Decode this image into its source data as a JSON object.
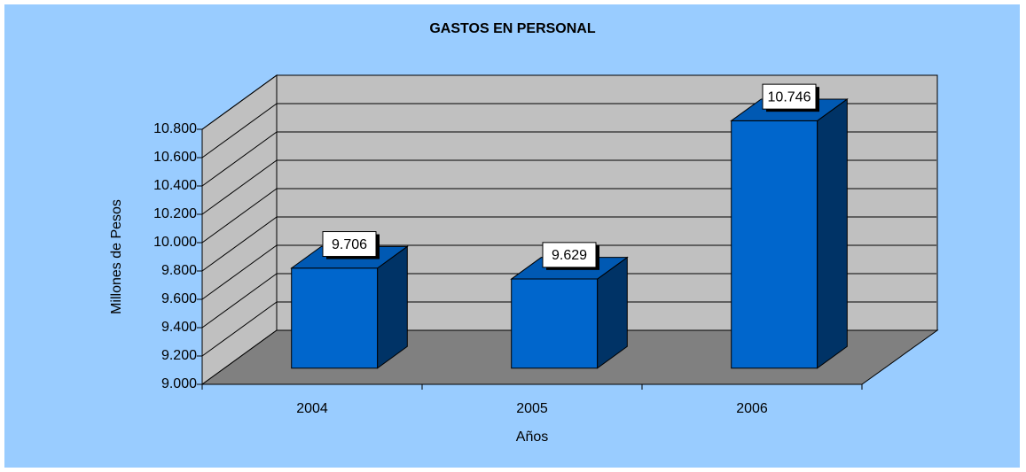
{
  "chart_data": {
    "type": "bar3d",
    "title": "GASTOS EN PERSONAL",
    "x_label": "Años",
    "y_label": "Millones de Pesos",
    "categories": [
      "2004",
      "2005",
      "2006"
    ],
    "values": [
      9706,
      9629,
      10746
    ],
    "value_labels": [
      "9.706",
      "9.629",
      "10.746"
    ],
    "color": "#0066cc",
    "ylim": [
      9000,
      10800
    ],
    "yticks": [
      {
        "value": 9000,
        "label": "9.000"
      },
      {
        "value": 9200,
        "label": "9.200"
      },
      {
        "value": 9400,
        "label": "9.400"
      },
      {
        "value": 9600,
        "label": "9.600"
      },
      {
        "value": 9800,
        "label": "9.800"
      },
      {
        "value": 10000,
        "label": "10.000"
      },
      {
        "value": 10200,
        "label": "10.200"
      },
      {
        "value": 10400,
        "label": "10.400"
      },
      {
        "value": 10600,
        "label": "10.600"
      },
      {
        "value": 10800,
        "label": "10.800"
      }
    ],
    "grid": true
  }
}
